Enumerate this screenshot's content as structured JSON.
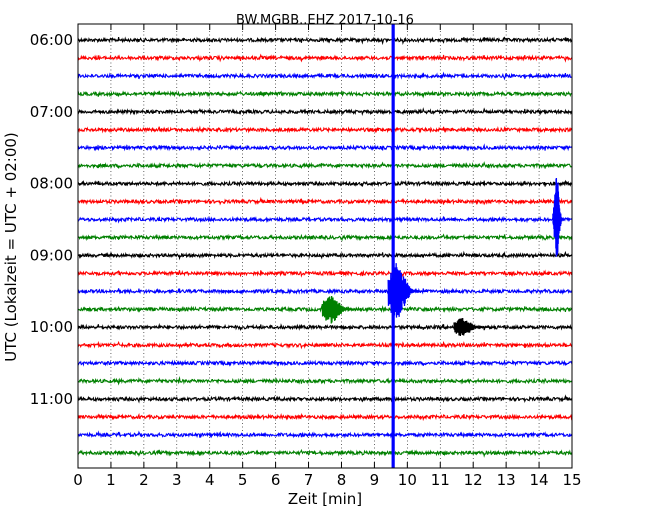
{
  "chart_data": {
    "type": "line",
    "title": "BW.MGBB..EHZ 2017-10-16",
    "xlabel": "Zeit  [min]",
    "ylabel": "UTC (Lokalzeit = UTC + 02:00)",
    "xlim": [
      0,
      15
    ],
    "x_ticks": [
      "0",
      "1",
      "2",
      "3",
      "4",
      "5",
      "6",
      "7",
      "8",
      "9",
      "10",
      "11",
      "12",
      "13",
      "14",
      "15"
    ],
    "y_ticks": [
      "06:00",
      "07:00",
      "08:00",
      "09:00",
      "10:00",
      "11:00"
    ],
    "grid": true,
    "trace_color_cycle": [
      "#000000",
      "#ff0000",
      "#0000ff",
      "#008000"
    ],
    "traces": [
      {
        "start": "06:00",
        "color": "#000000"
      },
      {
        "start": "06:15",
        "color": "#ff0000"
      },
      {
        "start": "06:30",
        "color": "#0000ff"
      },
      {
        "start": "06:45",
        "color": "#008000"
      },
      {
        "start": "07:00",
        "color": "#000000"
      },
      {
        "start": "07:15",
        "color": "#ff0000"
      },
      {
        "start": "07:30",
        "color": "#0000ff"
      },
      {
        "start": "07:45",
        "color": "#008000"
      },
      {
        "start": "08:00",
        "color": "#000000"
      },
      {
        "start": "08:15",
        "color": "#ff0000"
      },
      {
        "start": "08:30",
        "color": "#0000ff"
      },
      {
        "start": "08:45",
        "color": "#008000"
      },
      {
        "start": "09:00",
        "color": "#000000"
      },
      {
        "start": "09:15",
        "color": "#ff0000"
      },
      {
        "start": "09:30",
        "color": "#0000ff"
      },
      {
        "start": "09:45",
        "color": "#008000"
      },
      {
        "start": "10:00",
        "color": "#000000"
      },
      {
        "start": "10:15",
        "color": "#ff0000"
      },
      {
        "start": "10:30",
        "color": "#0000ff"
      },
      {
        "start": "10:45",
        "color": "#008000"
      },
      {
        "start": "11:00",
        "color": "#000000"
      },
      {
        "start": "11:15",
        "color": "#ff0000"
      },
      {
        "start": "11:30",
        "color": "#0000ff"
      },
      {
        "start": "11:45",
        "color": "#008000"
      }
    ],
    "events": [
      {
        "trace": "08:30",
        "t_min": 14.6,
        "amplitude": 2.6,
        "color": "#0000ff",
        "kind": "spike"
      },
      {
        "trace": "09:30",
        "t_min": 9.6,
        "amplitude": 16,
        "color": "#0000ff",
        "kind": "vertical-band-top"
      },
      {
        "trace": "09:30",
        "t_min": 9.6,
        "amplitude": 1.8,
        "color": "#0000ff",
        "kind": "burst"
      },
      {
        "trace": "09:45",
        "t_min": 7.6,
        "amplitude": 0.9,
        "color": "#008000",
        "kind": "burst"
      },
      {
        "trace": "10:00",
        "t_min": 11.6,
        "amplitude": 0.6,
        "color": "#000000",
        "kind": "burst"
      }
    ]
  }
}
